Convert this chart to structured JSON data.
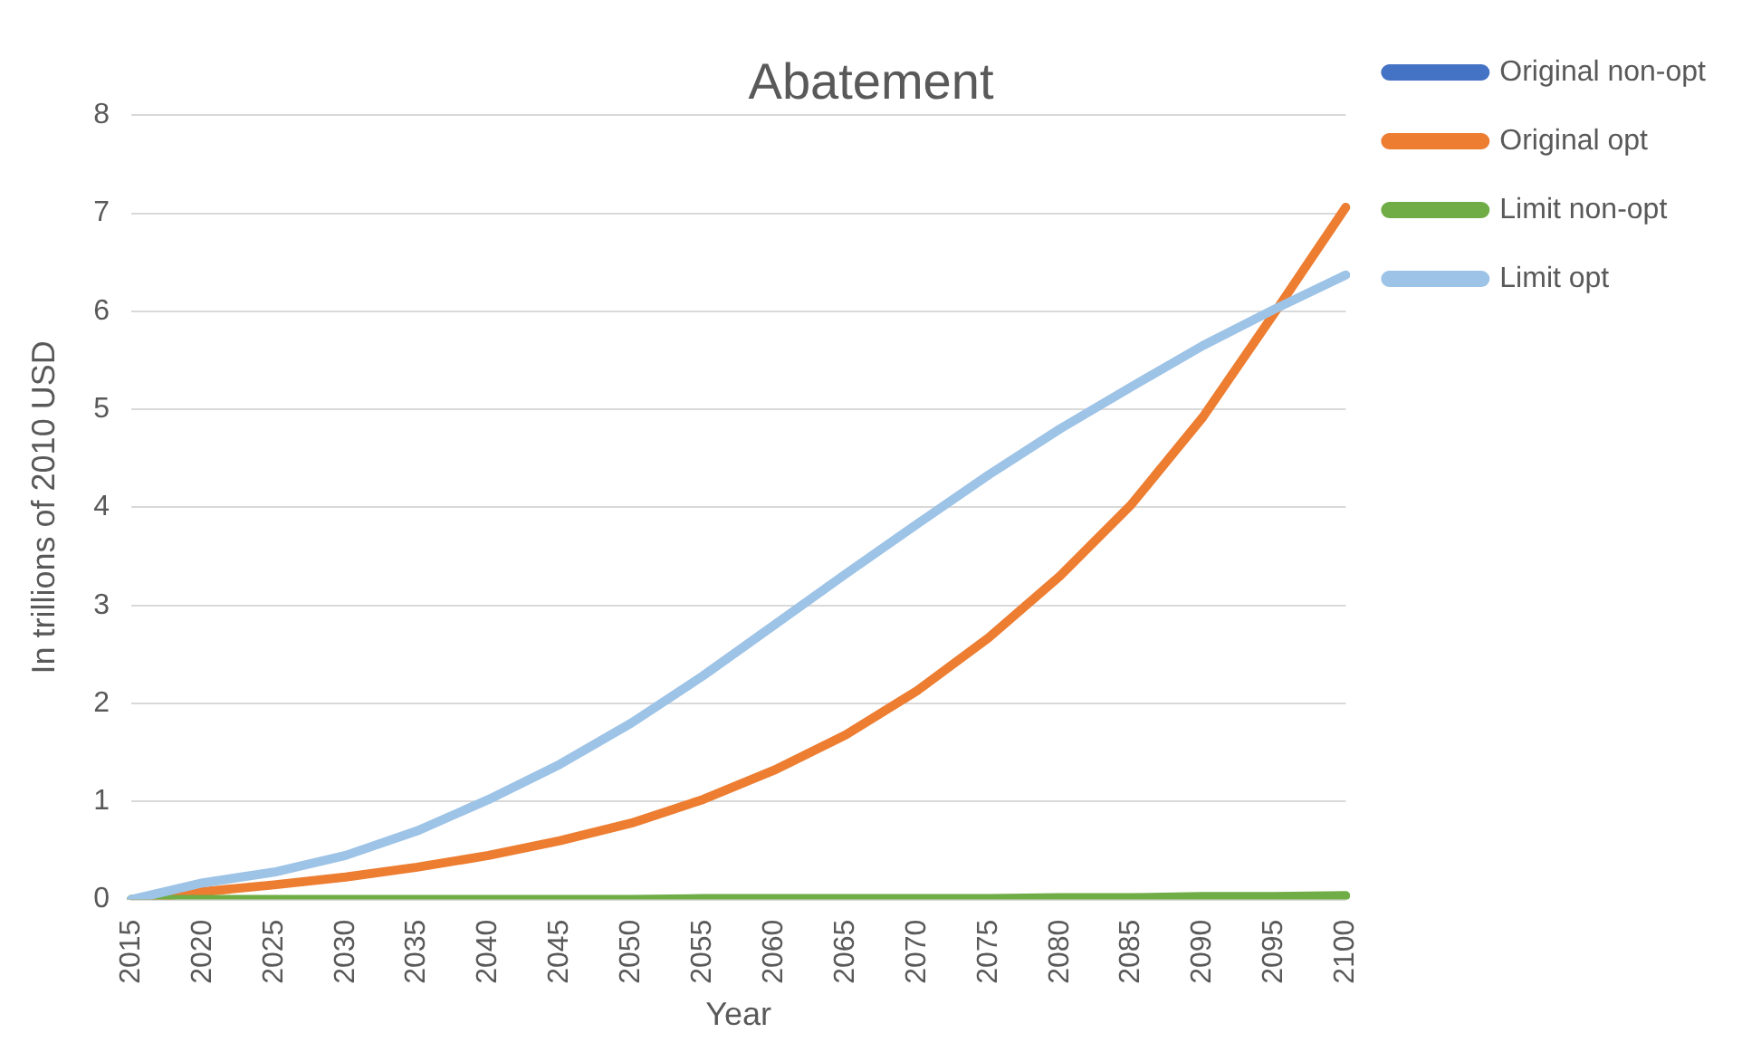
{
  "chart_data": {
    "type": "line",
    "title": "Abatement",
    "xlabel": "Year",
    "ylabel": "In trillions of 2010 USD",
    "categories": [
      "2015",
      "2020",
      "2025",
      "2030",
      "2035",
      "2040",
      "2045",
      "2050",
      "2055",
      "2060",
      "2065",
      "2070",
      "2075",
      "2080",
      "2085",
      "2090",
      "2095",
      "2100"
    ],
    "series": [
      {
        "name": "Original non-opt",
        "color": "#4472c4",
        "values": [
          null,
          null,
          null,
          null,
          null,
          null,
          null,
          null,
          null,
          null,
          null,
          null,
          null,
          null,
          null,
          null,
          null,
          null
        ]
      },
      {
        "name": "Original opt",
        "color": "#ed7d31",
        "values": [
          0,
          0.08,
          0.15,
          0.23,
          0.33,
          0.45,
          0.6,
          0.78,
          1.02,
          1.32,
          1.68,
          2.13,
          2.67,
          3.3,
          4.03,
          4.92,
          5.98,
          7.06
        ]
      },
      {
        "name": "Limit non-opt",
        "color": "#70ad47",
        "values": [
          0,
          0,
          0,
          0,
          0,
          0,
          0,
          0,
          0.01,
          0.01,
          0.01,
          0.01,
          0.01,
          0.02,
          0.02,
          0.03,
          0.03,
          0.04
        ]
      },
      {
        "name": "Limit opt",
        "color": "#9dc3e6",
        "values": [
          0,
          0.17,
          0.28,
          0.45,
          0.7,
          1.02,
          1.38,
          1.8,
          2.28,
          2.8,
          3.32,
          3.83,
          4.33,
          4.8,
          5.23,
          5.65,
          6.02,
          6.37
        ]
      }
    ],
    "ylim": [
      0,
      8
    ],
    "yticks": [
      0,
      1,
      2,
      3,
      4,
      5,
      6,
      7,
      8
    ],
    "grid": "y",
    "legend": "right",
    "marker": "none",
    "line_style": "solid"
  }
}
